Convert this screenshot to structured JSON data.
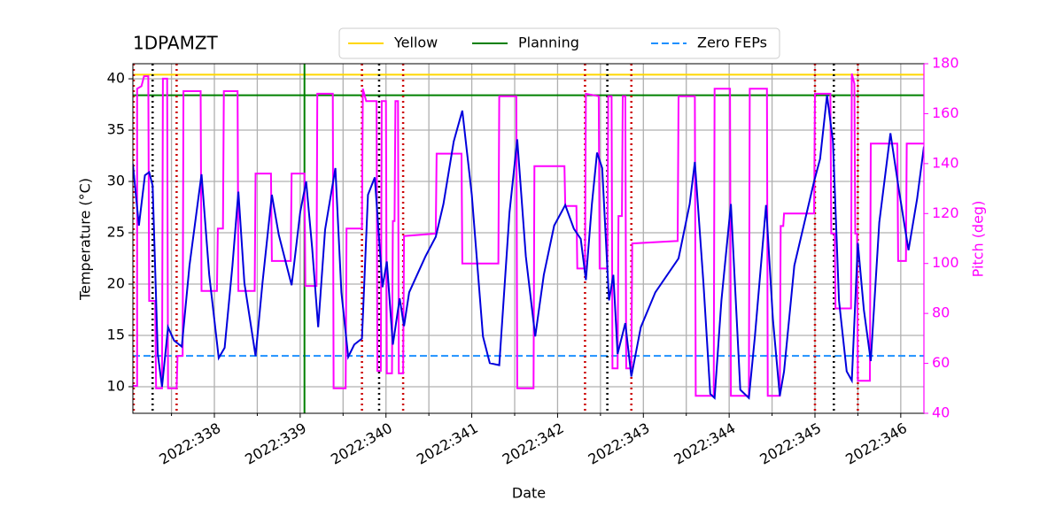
{
  "chart_data": {
    "type": "line",
    "title": "1DPAMZT",
    "xlabel": "Date",
    "ylabel": "Temperature (°C)",
    "y2label": "Pitch (deg)",
    "xlim": [
      337.05,
      346.27
    ],
    "ylim": [
      7.41,
      41.47
    ],
    "y2lim": [
      40,
      180
    ],
    "xticks": [
      {
        "value": 338,
        "label": "2022:338"
      },
      {
        "value": 339,
        "label": "2022:339"
      },
      {
        "value": 340,
        "label": "2022:340"
      },
      {
        "value": 341,
        "label": "2022:341"
      },
      {
        "value": 342,
        "label": "2022:342"
      },
      {
        "value": 343,
        "label": "2022:343"
      },
      {
        "value": 344,
        "label": "2022:344"
      },
      {
        "value": 345,
        "label": "2022:345"
      },
      {
        "value": 346,
        "label": "2022:346"
      }
    ],
    "xminor_ticks": [
      337.5,
      338.5,
      339.5,
      340.5,
      341.5,
      342.5,
      343.5,
      344.5,
      345.5
    ],
    "yticks": [
      10,
      15,
      20,
      25,
      30,
      35,
      40
    ],
    "y2ticks": [
      40,
      60,
      80,
      100,
      120,
      140,
      160,
      180
    ],
    "grid": true,
    "y2color": "#ff00ff",
    "limits": [
      {
        "name": "Yellow",
        "value": 40.4,
        "color": "#ffd700",
        "dash": false
      },
      {
        "name": "Planning",
        "value": 38.4,
        "color": "#008000",
        "dash": false
      },
      {
        "name": "Zero FEPs",
        "value": 13,
        "color": "#1e90ff",
        "dash": true
      }
    ],
    "vlines": [
      {
        "x": 337.06,
        "color": "#cc0000"
      },
      {
        "x": 337.56,
        "color": "#cc0000"
      },
      {
        "x": 339.72,
        "color": "#cc0000"
      },
      {
        "x": 340.2,
        "color": "#cc0000"
      },
      {
        "x": 342.32,
        "color": "#cc0000"
      },
      {
        "x": 342.86,
        "color": "#cc0000"
      },
      {
        "x": 345.0,
        "color": "#cc0000"
      },
      {
        "x": 345.5,
        "color": "#cc0000"
      },
      {
        "x": 337.28,
        "color": "#000000"
      },
      {
        "x": 339.92,
        "color": "#000000"
      },
      {
        "x": 342.58,
        "color": "#000000"
      },
      {
        "x": 345.22,
        "color": "#000000"
      }
    ],
    "now_line": {
      "x": 339.05,
      "color": "#008000"
    },
    "series": [
      {
        "color": "#0000dd",
        "axis": "y",
        "x": [
          337.05,
          337.12,
          337.19,
          337.24,
          337.28,
          337.34,
          337.39,
          337.46,
          337.53,
          337.62,
          337.71,
          337.85,
          337.94,
          338.05,
          338.12,
          338.21,
          338.28,
          338.35,
          338.48,
          338.56,
          338.67,
          338.75,
          338.9,
          339.0,
          339.07,
          339.14,
          339.21,
          339.29,
          339.41,
          339.48,
          339.56,
          339.63,
          339.72,
          339.79,
          339.87,
          339.96,
          340.01,
          340.08,
          340.16,
          340.21,
          340.27,
          340.46,
          340.58,
          340.67,
          340.79,
          340.89,
          341.0,
          341.13,
          341.21,
          341.32,
          341.44,
          341.53,
          341.63,
          341.74,
          341.84,
          341.96,
          342.09,
          342.19,
          342.27,
          342.33,
          342.4,
          342.46,
          342.52,
          342.6,
          342.65,
          342.7,
          342.79,
          342.86,
          342.97,
          343.14,
          343.41,
          343.54,
          343.6,
          343.7,
          343.78,
          343.83,
          343.91,
          344.02,
          344.13,
          344.23,
          344.3,
          344.43,
          344.51,
          344.59,
          344.64,
          344.76,
          344.99,
          345.06,
          345.14,
          345.21,
          345.28,
          345.37,
          345.43,
          345.5,
          345.57,
          345.65,
          345.75,
          345.88,
          345.98,
          346.09,
          346.19,
          346.27
        ],
        "values": [
          31.7,
          25.7,
          30.6,
          30.9,
          29.6,
          13.2,
          10.0,
          15.8,
          14.5,
          13.9,
          21.8,
          30.7,
          20.9,
          12.8,
          13.8,
          21.8,
          29.0,
          20.1,
          13.0,
          20.1,
          28.7,
          24.8,
          19.9,
          27.0,
          30.0,
          23.5,
          15.8,
          25.3,
          31.3,
          19.2,
          12.9,
          14.1,
          14.7,
          28.7,
          30.4,
          19.7,
          22.2,
          14.1,
          18.6,
          15.9,
          19.2,
          22.7,
          24.6,
          27.8,
          33.9,
          36.9,
          28.7,
          14.9,
          12.3,
          12.1,
          27.0,
          34.1,
          22.7,
          14.9,
          20.9,
          25.7,
          27.7,
          25.4,
          24.4,
          20.4,
          27.8,
          32.8,
          31.3,
          18.4,
          20.9,
          13.2,
          16.2,
          11.0,
          15.8,
          19.2,
          22.5,
          27.8,
          31.9,
          20.1,
          9.3,
          8.9,
          18.4,
          27.8,
          9.7,
          8.9,
          14.9,
          27.7,
          16.6,
          9.1,
          11.5,
          21.8,
          30.0,
          32.2,
          38.4,
          33.9,
          18.4,
          11.5,
          10.6,
          24.0,
          17.5,
          12.5,
          26.0,
          34.7,
          29.1,
          23.3,
          28.3,
          33.4
        ]
      },
      {
        "color": "#ff00ff",
        "axis": "y2",
        "x": [
          337.05,
          337.1,
          337.1,
          337.15,
          337.18,
          337.23,
          337.24,
          337.31,
          337.32,
          337.39,
          337.4,
          337.45,
          337.46,
          337.56,
          337.57,
          337.63,
          337.64,
          337.84,
          337.85,
          338.03,
          338.04,
          338.1,
          338.11,
          338.27,
          338.28,
          338.47,
          338.48,
          338.66,
          338.67,
          338.89,
          338.9,
          339.05,
          339.06,
          339.19,
          339.2,
          339.38,
          339.39,
          339.53,
          339.54,
          339.72,
          339.73,
          339.77,
          339.89,
          339.9,
          339.94,
          339.95,
          340.0,
          340.01,
          340.07,
          340.08,
          340.1,
          340.11,
          340.14,
          340.15,
          340.2,
          340.21,
          340.58,
          340.59,
          340.88,
          340.89,
          341.31,
          341.32,
          341.52,
          341.53,
          341.72,
          341.73,
          342.08,
          342.09,
          342.22,
          342.23,
          342.32,
          342.33,
          342.48,
          342.49,
          342.58,
          342.59,
          342.63,
          342.64,
          342.7,
          342.71,
          342.75,
          342.76,
          342.79,
          342.8,
          342.86,
          342.87,
          343.4,
          343.41,
          343.6,
          343.61,
          343.82,
          343.83,
          344.01,
          344.02,
          344.23,
          344.24,
          344.44,
          344.45,
          344.59,
          344.6,
          344.63,
          344.64,
          344.99,
          345.0,
          345.18,
          345.19,
          345.23,
          345.24,
          345.42,
          345.43,
          345.46,
          345.47,
          345.49,
          345.5,
          345.64,
          345.65,
          345.96,
          345.97,
          346.06,
          346.07,
          346.27
        ],
        "values": [
          51,
          51,
          170,
          171,
          175,
          175,
          85,
          85,
          50,
          50,
          174,
          174,
          50,
          50,
          63,
          63,
          169,
          169,
          89,
          89,
          114,
          114,
          169,
          169,
          89,
          89,
          136,
          136,
          101,
          101,
          136,
          136,
          91,
          91,
          168,
          168,
          50,
          50,
          114,
          114,
          170,
          165,
          165,
          57,
          57,
          165,
          165,
          56,
          56,
          117,
          117,
          165,
          165,
          56,
          56,
          111,
          112,
          144,
          144,
          100,
          100,
          167,
          167,
          50,
          50,
          139,
          139,
          123,
          123,
          98,
          98,
          168,
          167,
          98,
          98,
          167,
          167,
          58,
          58,
          119,
          119,
          167,
          167,
          58,
          58,
          108,
          109,
          167,
          167,
          47,
          47,
          170,
          170,
          47,
          47,
          170,
          170,
          47,
          47,
          115,
          115,
          120,
          120,
          168,
          168,
          112,
          112,
          82,
          82,
          176,
          172,
          112,
          112,
          53,
          53,
          148,
          148,
          101,
          101,
          148,
          148
        ]
      }
    ]
  }
}
